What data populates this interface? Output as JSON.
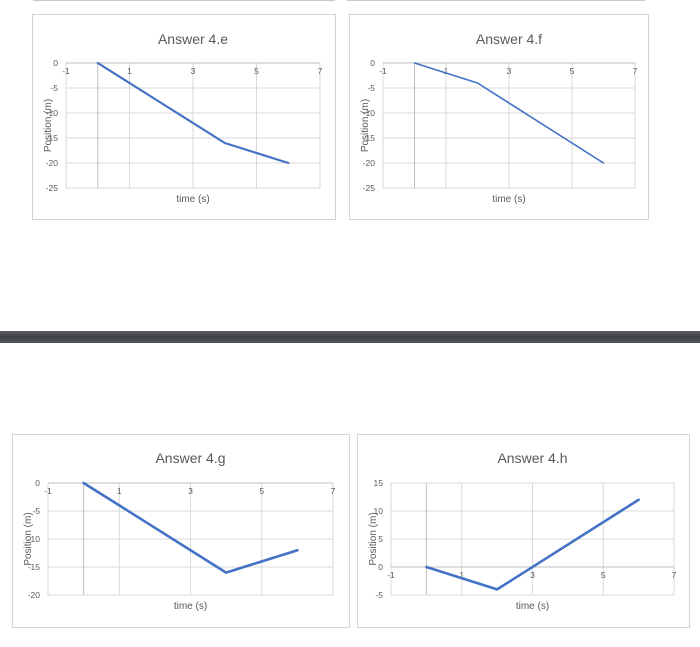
{
  "chart_data": [
    {
      "type": "line",
      "title": "Answer 4.e",
      "xlabel": "time (s)",
      "ylabel": "Position (m)",
      "xlim": [
        -1,
        7
      ],
      "ylim": [
        -25,
        0
      ],
      "x_ticks": [
        -1,
        1,
        3,
        5,
        7
      ],
      "y_ticks": [
        0,
        -5,
        -10,
        -15,
        -20,
        -25
      ],
      "grid": true,
      "series": [
        {
          "x": [
            0,
            1,
            4,
            6
          ],
          "y": [
            0,
            -4,
            -16,
            -20
          ]
        }
      ],
      "line_color": "#4472c4"
    },
    {
      "type": "line",
      "title": "Answer 4.f",
      "xlabel": "time (s)",
      "ylabel": "Position (m)",
      "xlim": [
        -1,
        7
      ],
      "ylim": [
        -25,
        0
      ],
      "x_ticks": [
        -1,
        1,
        3,
        5,
        7
      ],
      "y_ticks": [
        0,
        -5,
        -10,
        -15,
        -20,
        -25
      ],
      "grid": true,
      "series": [
        {
          "x": [
            0,
            2,
            6
          ],
          "y": [
            0,
            -4,
            -20
          ]
        }
      ],
      "line_color": "#4472c4"
    },
    {
      "type": "line",
      "title": "Answer 4.g",
      "xlabel": "time (s)",
      "ylabel": "Position (m)",
      "xlim": [
        -1,
        7
      ],
      "ylim": [
        -20,
        0
      ],
      "x_ticks": [
        -1,
        1,
        3,
        5,
        7
      ],
      "y_ticks": [
        0,
        -5,
        -10,
        -15,
        -20
      ],
      "grid": true,
      "series": [
        {
          "x": [
            0,
            1,
            4,
            6
          ],
          "y": [
            0,
            -4,
            -16,
            -12
          ]
        }
      ],
      "line_color": "#4472c4"
    },
    {
      "type": "line",
      "title": "Answer 4.h",
      "xlabel": "time (s)",
      "ylabel": "Position (m)",
      "xlim": [
        -1,
        7
      ],
      "ylim": [
        -5,
        15
      ],
      "x_ticks": [
        -1,
        1,
        3,
        5,
        7
      ],
      "y_ticks": [
        15,
        10,
        5,
        0,
        -5
      ],
      "grid": true,
      "series": [
        {
          "x": [
            0,
            2,
            6
          ],
          "y": [
            0,
            -4,
            12
          ]
        }
      ],
      "line_color": "#4472c4"
    }
  ]
}
